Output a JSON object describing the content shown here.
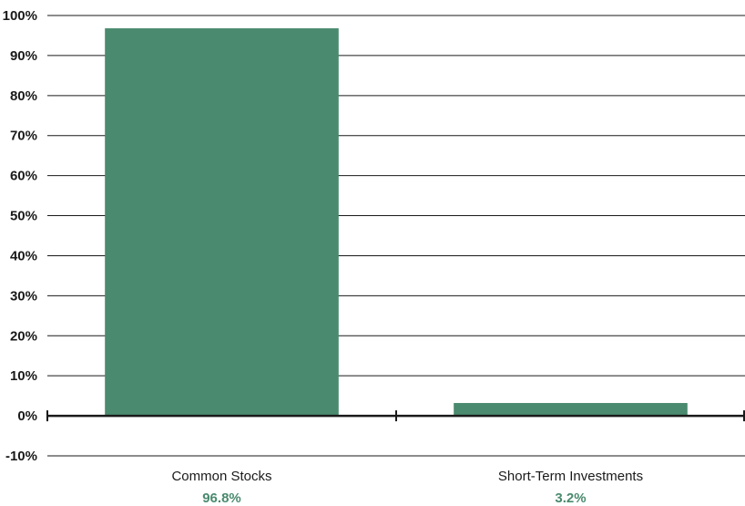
{
  "chart_data": {
    "type": "bar",
    "categories": [
      "Common Stocks",
      "Short-Term Investments"
    ],
    "values": [
      96.8,
      3.2
    ],
    "value_labels": [
      "96.8%",
      "3.2%"
    ],
    "ylim": [
      -10,
      100
    ],
    "yticks": [
      -10,
      0,
      10,
      20,
      30,
      40,
      50,
      60,
      70,
      80,
      90,
      100
    ],
    "ytick_labels": [
      "-10%",
      "0%",
      "10%",
      "20%",
      "30%",
      "40%",
      "50%",
      "60%",
      "70%",
      "80%",
      "90%",
      "100%"
    ],
    "grid": true,
    "title": "",
    "xlabel": "",
    "ylabel": ""
  },
  "colors": {
    "bar": "#4a8a6e",
    "value_label": "#4a8a6e",
    "grid": "#1a1a1a",
    "axis": "#1a1a1a"
  }
}
